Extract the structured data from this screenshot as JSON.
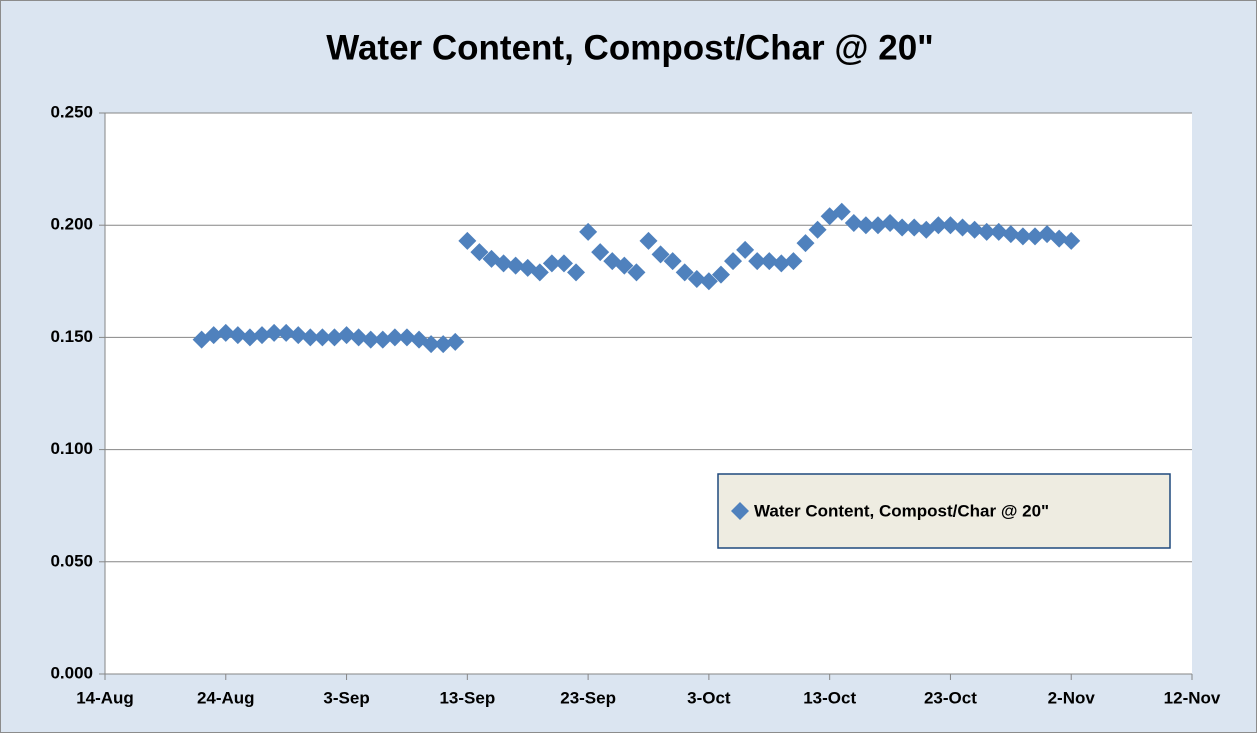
{
  "chart_data": {
    "type": "scatter",
    "title": "Water Content, Compost/Char @ 20\"",
    "x": [
      "22-Aug",
      "23-Aug",
      "24-Aug",
      "25-Aug",
      "26-Aug",
      "27-Aug",
      "28-Aug",
      "29-Aug",
      "30-Aug",
      "31-Aug",
      "1-Sep",
      "2-Sep",
      "3-Sep",
      "4-Sep",
      "5-Sep",
      "6-Sep",
      "7-Sep",
      "8-Sep",
      "9-Sep",
      "10-Sep",
      "11-Sep",
      "12-Sep",
      "13-Sep",
      "14-Sep",
      "15-Sep",
      "16-Sep",
      "17-Sep",
      "18-Sep",
      "19-Sep",
      "20-Sep",
      "21-Sep",
      "22-Sep",
      "23-Sep",
      "24-Sep",
      "25-Sep",
      "26-Sep",
      "27-Sep",
      "28-Sep",
      "29-Sep",
      "30-Sep",
      "1-Oct",
      "2-Oct",
      "3-Oct",
      "4-Oct",
      "5-Oct",
      "6-Oct",
      "7-Oct",
      "8-Oct",
      "9-Oct",
      "10-Oct",
      "11-Oct",
      "12-Oct",
      "13-Oct",
      "14-Oct",
      "15-Oct",
      "16-Oct",
      "17-Oct",
      "18-Oct",
      "19-Oct",
      "20-Oct",
      "21-Oct",
      "22-Oct",
      "23-Oct",
      "24-Oct",
      "25-Oct",
      "26-Oct",
      "27-Oct",
      "28-Oct",
      "29-Oct",
      "30-Oct",
      "31-Oct",
      "1-Nov",
      "2-Nov"
    ],
    "series": [
      {
        "name": "Water Content, Compost/Char @ 20\"",
        "color": "#4f81bd",
        "values": [
          0.149,
          0.151,
          0.152,
          0.151,
          0.15,
          0.151,
          0.152,
          0.152,
          0.151,
          0.15,
          0.15,
          0.15,
          0.151,
          0.15,
          0.149,
          0.149,
          0.15,
          0.15,
          0.149,
          0.147,
          0.147,
          0.148,
          0.193,
          0.188,
          0.185,
          0.183,
          0.182,
          0.181,
          0.179,
          0.183,
          0.183,
          0.179,
          0.197,
          0.188,
          0.184,
          0.182,
          0.179,
          0.193,
          0.187,
          0.184,
          0.179,
          0.176,
          0.175,
          0.178,
          0.184,
          0.189,
          0.184,
          0.184,
          0.183,
          0.184,
          0.192,
          0.198,
          0.204,
          0.206,
          0.201,
          0.2,
          0.2,
          0.201,
          0.199,
          0.199,
          0.198,
          0.2,
          0.2,
          0.199,
          0.198,
          0.197,
          0.197,
          0.196,
          0.195,
          0.195,
          0.196,
          0.194,
          0.193
        ]
      }
    ],
    "xlim": [
      "14-Aug",
      "12-Nov"
    ],
    "xticks": [
      "14-Aug",
      "24-Aug",
      "3-Sep",
      "13-Sep",
      "23-Sep",
      "3-Oct",
      "13-Oct",
      "23-Oct",
      "2-Nov",
      "12-Nov"
    ],
    "ylim": [
      0,
      0.25
    ],
    "yticks": [
      {
        "value": 0,
        "label": "0.000"
      },
      {
        "value": 0.05,
        "label": "0.050"
      },
      {
        "value": 0.1,
        "label": "0.100"
      },
      {
        "value": 0.15,
        "label": "0.150"
      },
      {
        "value": 0.2,
        "label": "0.200"
      },
      {
        "value": 0.25,
        "label": "0.250"
      }
    ],
    "grid": true,
    "legend": "right"
  }
}
